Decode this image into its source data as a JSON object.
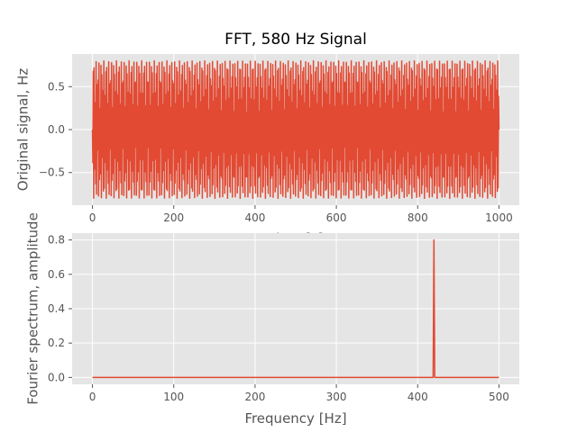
{
  "chart_data": [
    {
      "type": "line",
      "title": "FFT, 580 Hz Signal",
      "xlabel": "Time [s]",
      "ylabel": "Original signal, Hz",
      "xlim": [
        -50,
        1050
      ],
      "ylim": [
        -0.88,
        0.88
      ],
      "xticks": [
        0,
        200,
        400,
        600,
        800,
        1000
      ],
      "yticks": [
        -0.5,
        0.0,
        0.5
      ],
      "ytick_labels": [
        "−0.5",
        "0.0",
        "0.5"
      ],
      "grid": true,
      "series": [
        {
          "x_range": [
            0,
            1000
          ],
          "sample_count": 1000,
          "amplitude": 0.8,
          "frequency_hz": 580,
          "color": "#e24a33"
        }
      ]
    },
    {
      "type": "line",
      "title": "",
      "xlabel": "Frequency [Hz]",
      "ylabel": "Fourier spectrum, amplitude",
      "xlim": [
        -25,
        525
      ],
      "ylim": [
        -0.04,
        0.84
      ],
      "xticks": [
        0,
        100,
        200,
        300,
        400,
        500
      ],
      "yticks": [
        0.0,
        0.2,
        0.4,
        0.6,
        0.8
      ],
      "ytick_labels": [
        "0.0",
        "0.2",
        "0.4",
        "0.6",
        "0.8"
      ],
      "grid": true,
      "series": [
        {
          "x": [
            0,
            419,
            420,
            421,
            500
          ],
          "y": [
            0,
            0,
            0.8,
            0,
            0
          ],
          "color": "#e24a33"
        }
      ]
    }
  ],
  "colors": {
    "axes_background": "#e5e5e5",
    "grid": "#ffffff",
    "line": "#e24a33",
    "text": "#555555"
  }
}
